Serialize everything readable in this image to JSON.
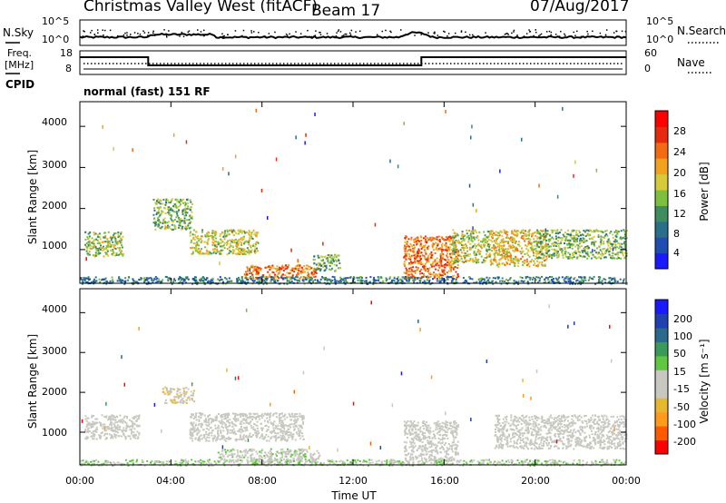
{
  "header": {
    "station": "Christmas Valley West (fitACF)",
    "beam": "Beam 17",
    "date": "07/Aug/2017"
  },
  "top_panels": {
    "nsky_label": "N.Sky",
    "nsky_ticks": [
      "10^5",
      "10^0"
    ],
    "nsearch_label": "N.Search",
    "nsearch_ticks": [
      "10^5",
      "10^0"
    ],
    "freq_label_line1": "Freq.",
    "freq_label_line2": "[MHz]",
    "freq_ticks": [
      "18",
      "8"
    ],
    "nave_label": "Nave",
    "nave_ticks": [
      "60",
      "0"
    ],
    "cpid_label": "CPID",
    "cpid_text": "normal (fast) 151 RF"
  },
  "colors": {
    "power": [
      "#1a1aff",
      "#1e4fb0",
      "#2a6f8a",
      "#3f8c5e",
      "#7fbf3f",
      "#d6c93a",
      "#f2a21d",
      "#f26b12",
      "#e62a0e",
      "#ff0000"
    ],
    "velocity": [
      "#ff0000",
      "#ff5a00",
      "#ff9a1a",
      "#e6b830",
      "#c8c8c0",
      "#c8c8c0",
      "#60c840",
      "#3a9a5a",
      "#2a6a8a",
      "#2040b0",
      "#1a1aff"
    ]
  },
  "chart_data": [
    {
      "type": "heatmap",
      "name": "power",
      "xlabel": "",
      "ylabel": "Slant Range [km]",
      "y_ticks": [
        "4000",
        "3000",
        "2000",
        "1000"
      ],
      "ylim": [
        180,
        4600
      ],
      "xlim_hours": [
        0,
        24
      ],
      "colorbar_label": "Power [dB]",
      "colorbar_ticks": [
        "28",
        "24",
        "20",
        "16",
        "12",
        "8",
        "4"
      ],
      "colorbar_range": [
        0,
        30
      ],
      "echo_regions": [
        {
          "t0": 0.2,
          "t1": 1.9,
          "r0": 850,
          "r1": 1450,
          "level": 14
        },
        {
          "t0": 3.2,
          "t1": 4.9,
          "r0": 1500,
          "r1": 2250,
          "level": 13
        },
        {
          "t0": 4.8,
          "t1": 7.8,
          "r0": 900,
          "r1": 1500,
          "level": 16
        },
        {
          "t0": 7.2,
          "t1": 10.4,
          "r0": 300,
          "r1": 650,
          "level": 22
        },
        {
          "t0": 10.2,
          "t1": 11.4,
          "r0": 500,
          "r1": 900,
          "level": 12
        },
        {
          "t0": 14.2,
          "t1": 16.6,
          "r0": 300,
          "r1": 1350,
          "level": 22
        },
        {
          "t0": 16.3,
          "t1": 18.0,
          "r0": 700,
          "r1": 1500,
          "level": 15
        },
        {
          "t0": 18.0,
          "t1": 20.5,
          "r0": 600,
          "r1": 1500,
          "level": 18
        },
        {
          "t0": 20.0,
          "t1": 24.0,
          "r0": 800,
          "r1": 1500,
          "level": 13
        },
        {
          "t0": 0.0,
          "t1": 24.0,
          "r0": 180,
          "r1": 360,
          "level": 8
        }
      ]
    },
    {
      "type": "heatmap",
      "name": "velocity",
      "xlabel": "Time UT",
      "ylabel": "Slant Range [km]",
      "y_ticks": [
        "4000",
        "3000",
        "2000",
        "1000"
      ],
      "ylim": [
        180,
        4600
      ],
      "xlim_hours": [
        0,
        24
      ],
      "x_ticks": [
        "00:00",
        "04:00",
        "08:00",
        "12:00",
        "16:00",
        "20:00",
        "00:00"
      ],
      "colorbar_label": "Velocity [m s⁻¹]",
      "colorbar_ticks": [
        "200",
        "100",
        "50",
        "15",
        "-15",
        "-50",
        "-100",
        "-200"
      ],
      "colorbar_range": [
        -250,
        250
      ],
      "echo_regions": [
        {
          "t0": 0.2,
          "t1": 2.6,
          "r0": 850,
          "r1": 1450,
          "velocity": 0
        },
        {
          "t0": 3.6,
          "t1": 5.0,
          "r0": 1750,
          "r1": 2150,
          "velocity": -60
        },
        {
          "t0": 4.8,
          "t1": 9.8,
          "r0": 800,
          "r1": 1500,
          "velocity": -30
        },
        {
          "t0": 6.0,
          "t1": 10.5,
          "r0": 250,
          "r1": 600,
          "velocity": 10
        },
        {
          "t0": 14.2,
          "t1": 16.6,
          "r0": 300,
          "r1": 1300,
          "velocity": 0
        },
        {
          "t0": 18.2,
          "t1": 24.0,
          "r0": 600,
          "r1": 1450,
          "velocity": 0
        },
        {
          "t0": 0.0,
          "t1": 24.0,
          "r0": 180,
          "r1": 330,
          "velocity": 20
        }
      ]
    }
  ]
}
